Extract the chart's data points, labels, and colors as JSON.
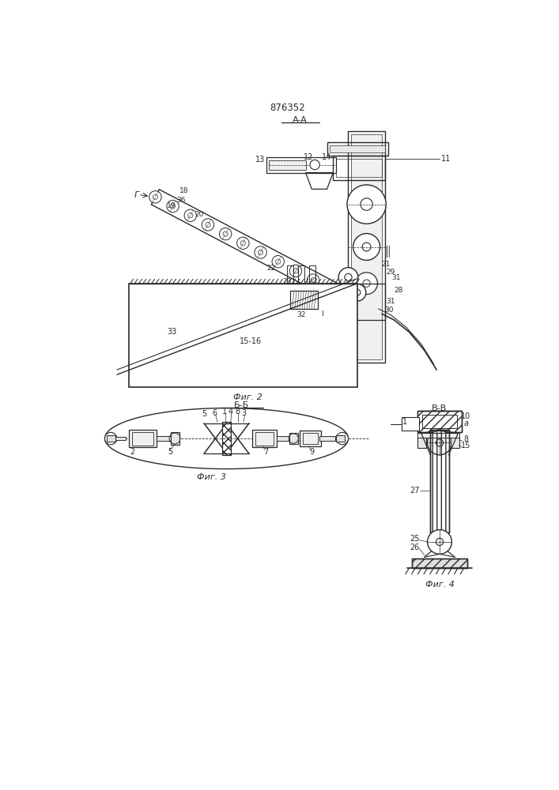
{
  "title": "876352",
  "background_color": "#ffffff",
  "line_color": "#2a2a2a",
  "fig2_label": "Фиг. 2",
  "fig3_label": "Фиг. 3",
  "fig4_label": "Фиг. 4",
  "section_aa": "A-A",
  "section_bb": "Б-Б",
  "section_vv": "В-В"
}
